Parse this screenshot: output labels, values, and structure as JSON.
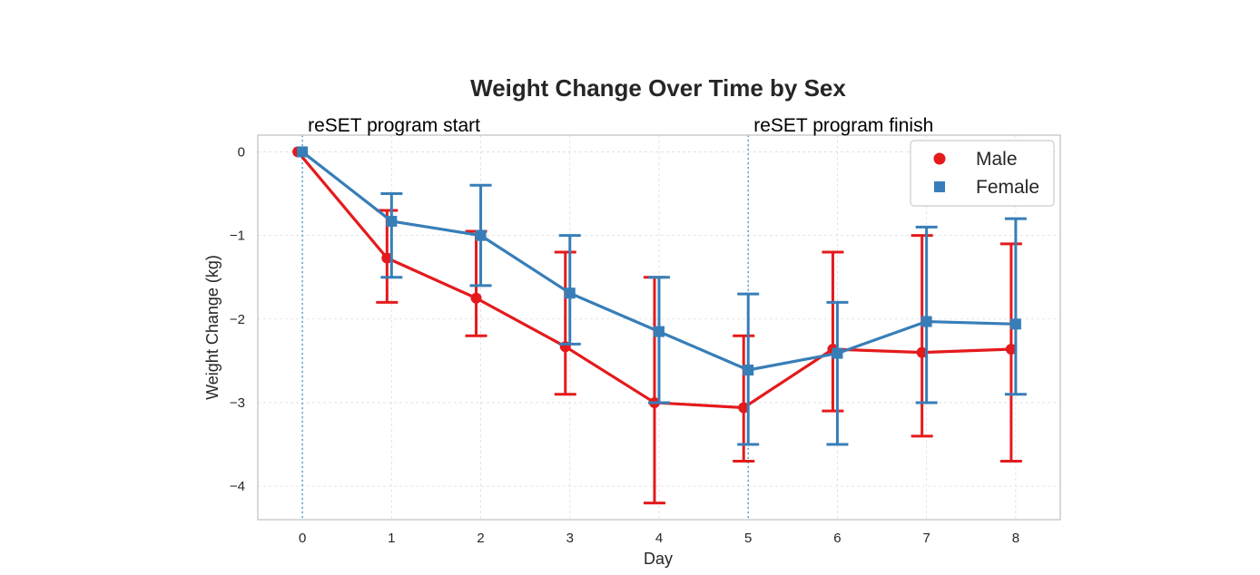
{
  "chart_data": {
    "type": "line",
    "title": "Weight Change Over Time by Sex",
    "xlabel": "Day",
    "ylabel": "Weight Change (kg)",
    "x": [
      0,
      1,
      2,
      3,
      4,
      5,
      6,
      7,
      8
    ],
    "xlim": [
      -0.5,
      8.5
    ],
    "ylim": [
      -4.4,
      0.2
    ],
    "xticks": [
      "0",
      "1",
      "2",
      "3",
      "4",
      "5",
      "6",
      "7",
      "8"
    ],
    "yticks": [
      0,
      -1,
      -2,
      -3,
      -4
    ],
    "ytick_labels": [
      "0",
      "−1",
      "−2",
      "−3",
      "−4"
    ],
    "grid": true,
    "legend_position": "top-right",
    "series": [
      {
        "name": "Male",
        "marker": "circle",
        "color": "#e41a1c",
        "values": [
          0,
          -1.27,
          -1.75,
          -2.33,
          -3.0,
          -3.06,
          -2.36,
          -2.4,
          -2.36
        ],
        "err_low": [
          0,
          -1.8,
          -2.2,
          -2.9,
          -4.2,
          -3.7,
          -3.1,
          -3.4,
          -3.7
        ],
        "err_high": [
          0,
          -0.7,
          -0.95,
          -1.2,
          -1.5,
          -2.2,
          -1.2,
          -1.0,
          -1.1
        ]
      },
      {
        "name": "Female",
        "marker": "square",
        "color": "#377eb8",
        "values": [
          0,
          -0.83,
          -1.0,
          -1.69,
          -2.15,
          -2.61,
          -2.41,
          -2.03,
          -2.06
        ],
        "err_low": [
          0,
          -1.5,
          -1.6,
          -2.3,
          -3.0,
          -3.5,
          -3.5,
          -3.0,
          -2.9
        ],
        "err_high": [
          0,
          -0.5,
          -0.4,
          -1.0,
          -1.5,
          -1.7,
          -1.8,
          -0.9,
          -0.8
        ]
      }
    ],
    "annotations": [
      {
        "text": "reSET program start",
        "x": 0
      },
      {
        "text": "reSET program finish",
        "x": 5
      }
    ],
    "vlines": [
      0,
      5
    ],
    "vline_color": "#4fa9d6"
  }
}
